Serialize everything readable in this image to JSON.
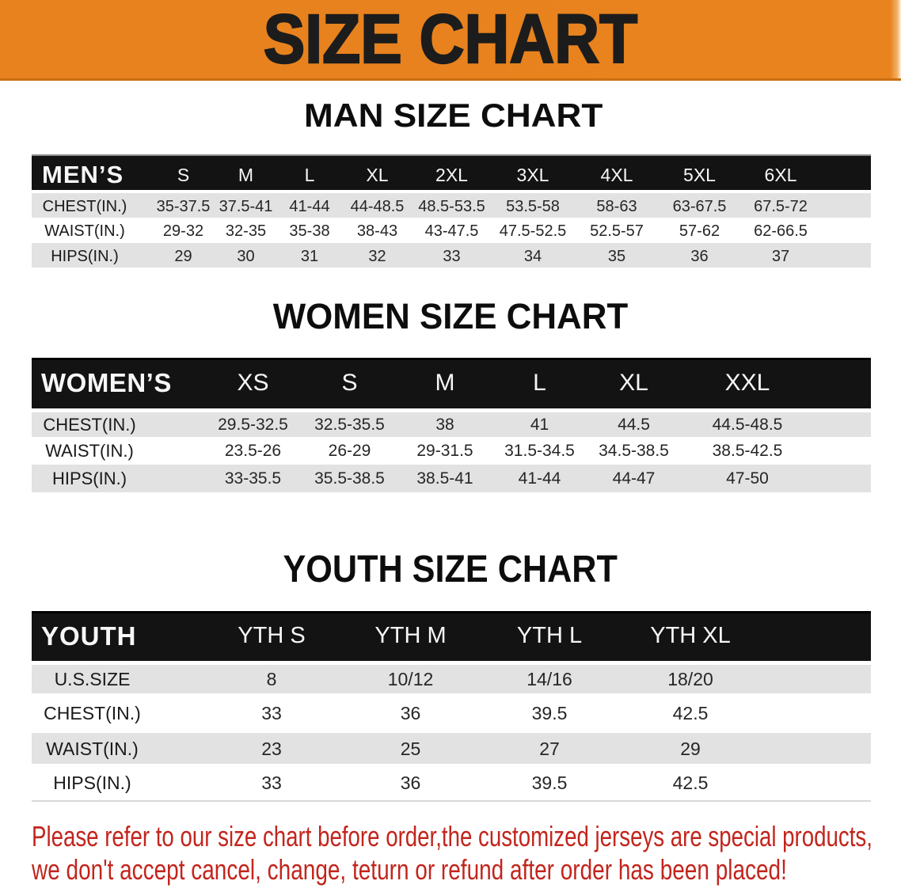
{
  "banner": {
    "title": "SIZE CHART",
    "background_color": "#E8831E",
    "text_color": "#1C1C1C"
  },
  "sections": [
    {
      "id": "men",
      "heading": "MAN SIZE CHART",
      "table": {
        "header": [
          "MEN’S",
          "S",
          "M",
          "L",
          "XL",
          "2XL",
          "3XL",
          "4XL",
          "5XL",
          "6XL"
        ],
        "rows": [
          [
            "CHEST(IN.)",
            "35-37.5",
            "37.5-41",
            "41-44",
            "44-48.5",
            "48.5-53.5",
            "53.5-58",
            "58-63",
            "63-67.5",
            "67.5-72"
          ],
          [
            "WAIST(IN.)",
            "29-32",
            "32-35",
            "35-38",
            "38-43",
            "43-47.5",
            "47.5-52.5",
            "52.5-57",
            "57-62",
            "62-66.5"
          ],
          [
            "HIPS(IN.)",
            "29",
            "30",
            "31",
            "32",
            "33",
            "34",
            "35",
            "36",
            "37"
          ]
        ]
      }
    },
    {
      "id": "women",
      "heading": "WOMEN SIZE CHART",
      "table": {
        "header": [
          "WOMEN’S",
          "XS",
          "S",
          "M",
          "L",
          "XL",
          "XXL"
        ],
        "rows": [
          [
            "CHEST(IN.)",
            "29.5-32.5",
            "32.5-35.5",
            "38",
            "41",
            "44.5",
            "44.5-48.5"
          ],
          [
            "WAIST(IN.)",
            "23.5-26",
            "26-29",
            "29-31.5",
            "31.5-34.5",
            "34.5-38.5",
            "38.5-42.5"
          ],
          [
            "HIPS(IN.)",
            "33-35.5",
            "35.5-38.5",
            "38.5-41",
            "41-44",
            "44-47",
            "47-50"
          ]
        ]
      }
    },
    {
      "id": "youth",
      "heading": "YOUTH SIZE CHART",
      "table": {
        "header": [
          "YOUTH",
          "YTH S",
          "YTH M",
          "YTH L",
          "YTH XL"
        ],
        "rows": [
          [
            "U.S.SIZE",
            "8",
            "10/12",
            "14/16",
            "18/20"
          ],
          [
            "CHEST(IN.)",
            "33",
            "36",
            "39.5",
            "42.5"
          ],
          [
            "WAIST(IN.)",
            "23",
            "25",
            "27",
            "29"
          ],
          [
            "HIPS(IN.)",
            "33",
            "36",
            "39.5",
            "42.5"
          ]
        ]
      }
    }
  ],
  "footer": {
    "color": "#C2251D",
    "lines": [
      "Please refer to our size chart before order,the customized jerseys are special products,",
      "we don't accept cancel, change, teturn or refund after order has been placed!"
    ]
  },
  "style_colors": {
    "header_band": "#131313",
    "striped_row": "#E2E2E2",
    "page_background": "#FFFFFF"
  }
}
